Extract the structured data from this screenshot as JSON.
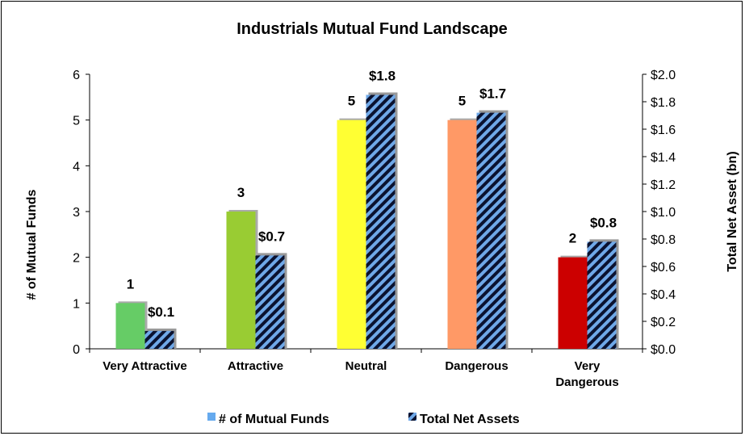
{
  "chart_data": {
    "type": "bar",
    "title": "Industrials Mutual Fund Landscape",
    "categories": [
      [
        "Very Attractive"
      ],
      [
        "Attractive"
      ],
      [
        "Neutral"
      ],
      [
        "Dangerous"
      ],
      [
        "Very",
        "Dangerous"
      ]
    ],
    "ylabel": "# of Mutual Funds",
    "y2label": "Total Net Asset (bn)",
    "ylim": [
      0,
      6
    ],
    "y2lim": [
      0,
      2.0
    ],
    "yticks": [
      "0",
      "1",
      "2",
      "3",
      "4",
      "5",
      "6"
    ],
    "y2ticks": [
      "$0.0",
      "$0.2",
      "$0.4",
      "$0.6",
      "$0.8",
      "$1.0",
      "$1.2",
      "$1.4",
      "$1.6",
      "$1.8",
      "$2.0"
    ],
    "series": [
      {
        "name": "# of Mutual Funds",
        "axis": "left",
        "values": [
          1,
          3,
          5,
          5,
          2
        ],
        "labels": [
          "1",
          "3",
          "5",
          "5",
          "2"
        ],
        "colors": [
          "#66cc66",
          "#99cc33",
          "#ffff33",
          "#ff9966",
          "#cc0000"
        ],
        "legend_color": "#66aaee"
      },
      {
        "name": "Total Net Assets",
        "axis": "right",
        "values": [
          0.13,
          0.68,
          1.85,
          1.72,
          0.78
        ],
        "labels": [
          "$0.1",
          "$0.7",
          "$1.8",
          "$1.7",
          "$0.8"
        ],
        "pattern": "diagonal-stripes",
        "colors": [
          "#6fa8e8",
          "#0a1230"
        ]
      }
    ],
    "legend_position": "bottom",
    "grid": false
  }
}
